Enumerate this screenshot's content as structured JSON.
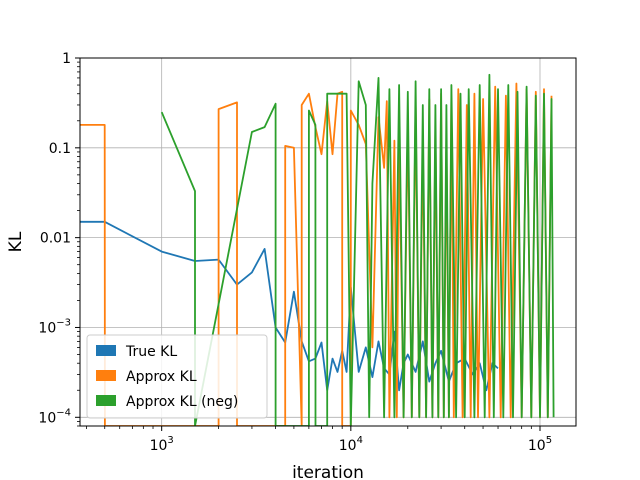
{
  "chart_data": {
    "type": "line",
    "title": "",
    "xlabel": "iteration",
    "ylabel": "KL",
    "x_scale": "log",
    "y_scale": "log",
    "xlim": [
      370,
      155000
    ],
    "ylim": [
      8e-05,
      1
    ],
    "grid": true,
    "legend_position": "lower-left",
    "x_ticks": [
      {
        "value": 1000,
        "base": "10",
        "exp": "3"
      },
      {
        "value": 10000,
        "base": "10",
        "exp": "4"
      },
      {
        "value": 100000,
        "base": "10",
        "exp": "5"
      }
    ],
    "y_ticks": [
      {
        "value": 1,
        "label": "1"
      },
      {
        "value": 0.1,
        "label": "0.1"
      },
      {
        "value": 0.01,
        "label": "0.01"
      },
      {
        "value": 0.001,
        "base": "10",
        "exp": "−3"
      },
      {
        "value": 0.0001,
        "base": "10",
        "exp": "−4"
      }
    ],
    "series": [
      {
        "name": "True KL",
        "color": "#1f77b4",
        "x": [
          370,
          500,
          1000,
          1500,
          2000,
          2500,
          3000,
          3500,
          4000,
          4500,
          5000,
          5500,
          6000,
          6500,
          7000,
          7500,
          8000,
          8500,
          9000,
          9500,
          10000,
          11000,
          12000,
          13000,
          14000,
          15000,
          16000,
          17000,
          18000,
          19000,
          20000,
          22000,
          24000,
          26000,
          28000,
          30000,
          33000,
          36000,
          40000,
          44000,
          48000,
          52000,
          56000,
          60000
        ],
        "y": [
          0.015,
          0.015,
          0.007,
          0.0055,
          0.0057,
          0.003,
          0.0041,
          0.0075,
          0.001,
          0.00068,
          0.0025,
          0.0007,
          0.00042,
          0.00045,
          0.00068,
          0.0002,
          0.00045,
          0.00032,
          0.00055,
          0.00032,
          0.0028,
          0.00032,
          0.0006,
          0.00028,
          0.0007,
          0.00035,
          0.0003,
          0.0009,
          0.0002,
          0.0004,
          0.0005,
          0.00032,
          0.0007,
          0.00025,
          0.0004,
          0.00055,
          0.00025,
          0.0004,
          0.00045,
          0.0003,
          0.0004,
          0.0002,
          0.0004,
          0.00035
        ]
      },
      {
        "name": "Approx KL",
        "color": "#ff7f0e",
        "x": [
          370,
          499,
          500,
          501,
          1999,
          2000,
          2500,
          2501,
          4499,
          4500,
          5000,
          5499,
          5500,
          6000,
          6500,
          7000,
          7500,
          8000,
          8500,
          8999,
          9000,
          9999,
          10000,
          11000,
          12000,
          13000,
          14000,
          15000,
          15500,
          16000,
          17000,
          17500,
          18000,
          19000,
          20000,
          21000,
          22000,
          23000,
          24000,
          25000,
          26000,
          27000,
          28000,
          29000,
          30000,
          31000,
          32000,
          33000,
          34000,
          35000,
          37000,
          39000,
          41000,
          43000,
          45000,
          47000,
          50000,
          54000,
          58000,
          62000,
          66000,
          70000,
          75000,
          80000,
          85000,
          90000,
          95000,
          100000,
          105000,
          110000,
          115000
        ],
        "y": [
          0.18,
          0.18,
          0.18,
          8e-05,
          8e-05,
          0.27,
          0.32,
          8e-05,
          8e-05,
          0.105,
          0.1,
          8e-05,
          0.3,
          0.4,
          0.17,
          0.085,
          0.33,
          0.085,
          0.4,
          0.42,
          8e-05,
          8e-05,
          0.26,
          0.18,
          0.11,
          0.0006,
          0.22,
          0.06,
          0.33,
          0.0001,
          0.12,
          0.0001,
          0.14,
          0.0001,
          0.2,
          0.0001,
          0.3,
          0.0001,
          0.12,
          0.0001,
          0.35,
          0.0001,
          0.16,
          0.0001,
          0.4,
          0.0001,
          0.12,
          0.0001,
          0.35,
          0.0001,
          0.45,
          0.0001,
          0.3,
          0.0001,
          0.4,
          0.0001,
          0.35,
          0.0001,
          0.48,
          0.0001,
          0.38,
          0.0001,
          0.52,
          0.0001,
          0.45,
          0.0001,
          0.42,
          0.0001,
          0.45,
          0.0001,
          0.38
        ]
      },
      {
        "name": "Approx KL (neg)",
        "color": "#2ca02c",
        "x": [
          1000,
          1500,
          1501,
          3000,
          3500,
          4000,
          4001,
          6000,
          6001,
          6500,
          6501,
          7500,
          7501,
          9500,
          10000,
          11000,
          12000,
          12500,
          13000,
          14000,
          15000,
          16000,
          17000,
          18000,
          19000,
          20000,
          21000,
          22000,
          23000,
          24000,
          25000,
          26000,
          27000,
          28000,
          29000,
          30000,
          31000,
          32000,
          33000,
          34000,
          36000,
          38000,
          40000,
          42000,
          45000,
          48000,
          51000,
          54000,
          57000,
          60000,
          64000,
          68000,
          72000,
          76000,
          80000,
          85000,
          90000,
          95000,
          100000,
          105000,
          110000,
          115000,
          118000
        ],
        "y": [
          0.25,
          0.033,
          8e-05,
          0.15,
          0.17,
          0.31,
          8e-05,
          8e-05,
          0.26,
          0.18,
          8e-05,
          8e-05,
          0.4,
          0.4,
          8e-05,
          0.55,
          0.3,
          0.0001,
          0.04,
          0.6,
          0.0001,
          0.45,
          0.0001,
          0.5,
          0.0001,
          0.42,
          0.0001,
          0.55,
          0.0001,
          0.3,
          0.0001,
          0.45,
          0.0001,
          0.3,
          0.0001,
          0.45,
          0.0001,
          0.3,
          0.0001,
          0.5,
          0.0001,
          0.4,
          0.0001,
          0.45,
          0.0001,
          0.5,
          0.0001,
          0.65,
          0.0001,
          0.45,
          0.0001,
          0.5,
          0.0001,
          0.42,
          0.0001,
          0.48,
          0.0001,
          0.38,
          0.0001,
          0.4,
          0.0001,
          0.35,
          0.0001
        ]
      }
    ]
  }
}
